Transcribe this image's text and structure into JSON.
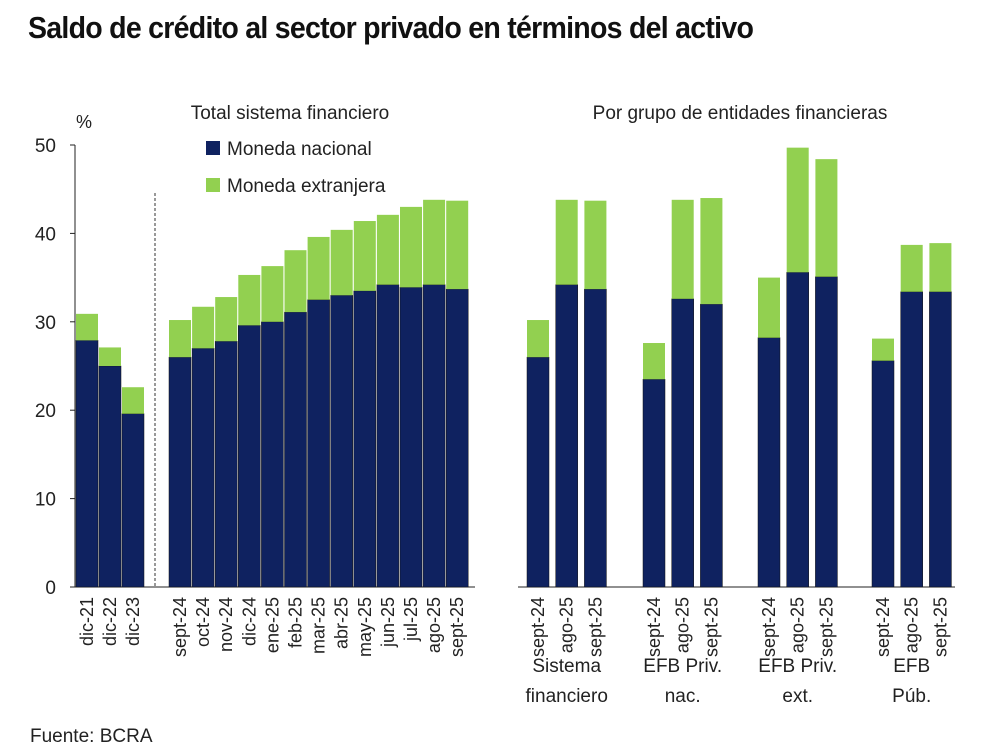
{
  "title": "Saldo de crédito al sector privado en términos del activo",
  "source": "Fuente: BCRA",
  "colors": {
    "nacional": "#0f2260",
    "extranjera": "#92d050"
  },
  "chart_data": [
    {
      "type": "bar",
      "stacked": true,
      "title": "Total sistema financiero",
      "ylabel": "%",
      "ylim": [
        0,
        50
      ],
      "yticks": [
        0,
        10,
        20,
        30,
        40,
        50
      ],
      "grid": false,
      "legend": "top",
      "categories": [
        "dic-21",
        "dic-22",
        "dic-23",
        "sept-24",
        "oct-24",
        "nov-24",
        "dic-24",
        "ene-25",
        "feb-25",
        "mar-25",
        "abr-25",
        "may-25",
        "jun-25",
        "jul-25",
        "ago-25",
        "sept-25"
      ],
      "series": [
        {
          "name": "Moneda nacional",
          "values": [
            27.9,
            25.0,
            19.6,
            26.0,
            27.0,
            27.8,
            29.6,
            30.0,
            31.1,
            32.5,
            33.0,
            33.5,
            34.2,
            33.9,
            34.2,
            33.7
          ]
        },
        {
          "name": "Moneda extranjera",
          "values": [
            3.0,
            2.1,
            3.0,
            4.2,
            4.7,
            5.0,
            5.7,
            6.3,
            7.0,
            7.1,
            7.4,
            7.9,
            7.9,
            9.1,
            9.6,
            10.0
          ]
        }
      ]
    },
    {
      "type": "bar",
      "stacked": true,
      "title": "Por grupo de entidades financieras",
      "ylim": [
        0,
        50
      ],
      "groups": [
        {
          "label": [
            "Sistema",
            "financiero"
          ],
          "categories": [
            "sept-24",
            "ago-25",
            "sept-25"
          ],
          "nacional": [
            26.0,
            34.2,
            33.7
          ],
          "extranjera": [
            4.2,
            9.6,
            10.0
          ]
        },
        {
          "label": [
            "EFB Priv.",
            "nac."
          ],
          "categories": [
            "sept-24",
            "ago-25",
            "sept-25"
          ],
          "nacional": [
            23.5,
            32.6,
            32.0
          ],
          "extranjera": [
            4.1,
            11.2,
            12.0
          ]
        },
        {
          "label": [
            "EFB Priv.",
            "ext."
          ],
          "categories": [
            "sept-24",
            "ago-25",
            "sept-25"
          ],
          "nacional": [
            28.2,
            35.6,
            35.1
          ],
          "extranjera": [
            6.8,
            14.1,
            13.3
          ]
        },
        {
          "label": [
            "EFB",
            "Púb."
          ],
          "categories": [
            "sept-24",
            "ago-25",
            "sept-25"
          ],
          "nacional": [
            25.6,
            33.4,
            33.4
          ],
          "extranjera": [
            2.5,
            5.3,
            5.5
          ]
        }
      ]
    }
  ]
}
